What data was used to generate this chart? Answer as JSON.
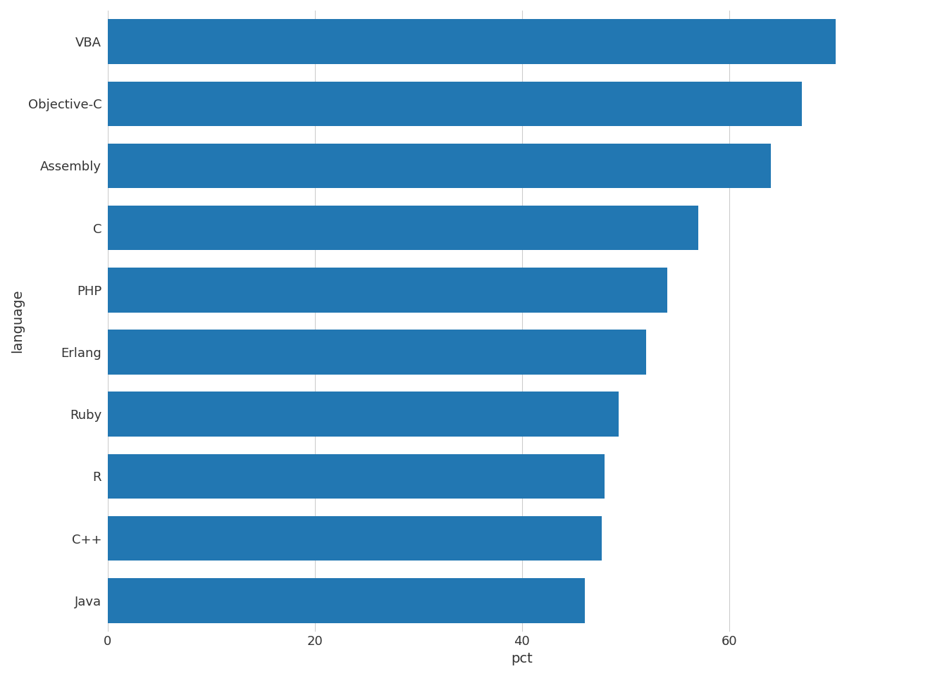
{
  "categories": [
    "Java",
    "C++",
    "R",
    "Ruby",
    "Erlang",
    "PHP",
    "C",
    "Assembly",
    "Objective-C",
    "VBA"
  ],
  "values": [
    46.1,
    47.7,
    48.0,
    49.3,
    52.0,
    54.0,
    57.0,
    64.0,
    67.0,
    70.3
  ],
  "bar_color": "#2277b2",
  "xlabel": "pct",
  "ylabel": "language",
  "xlim": [
    0,
    80
  ],
  "xticks": [
    0,
    20,
    40,
    60
  ],
  "background_color": "#ffffff",
  "panel_background": "#ffffff",
  "grid_color": "#cccccc",
  "bar_height": 0.72,
  "ylabel_fontsize": 14,
  "xlabel_fontsize": 14,
  "tick_fontsize": 13,
  "label_color": "#333333"
}
